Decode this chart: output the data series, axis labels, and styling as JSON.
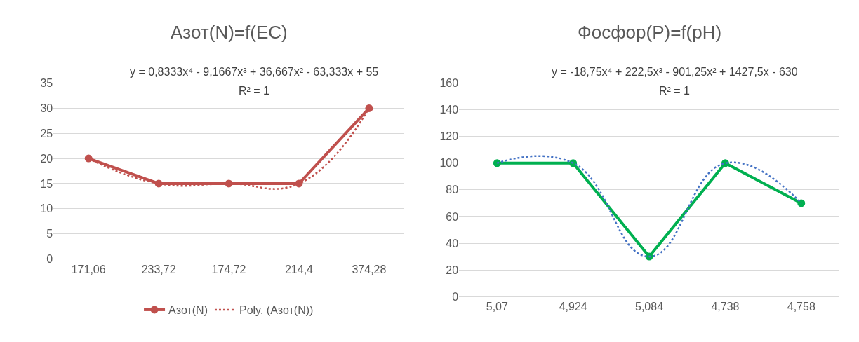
{
  "chart_data": [
    {
      "type": "line",
      "title": "Азот(N)=f(EC)",
      "categories": [
        "171,06",
        "233,72",
        "174,72",
        "214,4",
        "374,28"
      ],
      "ylim": [
        0,
        35
      ],
      "yticks": [
        0,
        5,
        10,
        15,
        20,
        25,
        30,
        35
      ],
      "grid": "y",
      "legend": "bottom",
      "annotations": [
        "y = 0,8333x⁴ - 9,1667x³ + 36,667x² - 63,333x + 55",
        "R² = 1"
      ],
      "series": [
        {
          "name": "Азот(N)",
          "color": "#c0504d",
          "values": [
            20,
            15,
            15,
            15,
            30
          ],
          "marker": "circle",
          "line_style": "solid"
        },
        {
          "name": "Poly. (Азот(N))",
          "color": "#c0504d",
          "type": "line",
          "marker": "none",
          "line_style": "dotted",
          "values": [
            20,
            15,
            15,
            15,
            30
          ]
        }
      ]
    },
    {
      "type": "line",
      "title": "Фосфор(P)=f(pH)",
      "categories": [
        "5,07",
        "4,924",
        "5,084",
        "4,738",
        "4,758"
      ],
      "ylim": [
        0,
        160
      ],
      "yticks": [
        0,
        20,
        40,
        60,
        80,
        100,
        120,
        140,
        160
      ],
      "grid": "y",
      "legend": false,
      "annotations": [
        "y = -18,75x⁴ + 222,5x³ - 901,25x² + 1427,5x - 630",
        "R² = 1"
      ],
      "series": [
        {
          "color": "#00b050",
          "values": [
            100,
            100,
            30,
            100,
            70
          ],
          "marker": "circle",
          "line_style": "solid"
        },
        {
          "color": "#4472c4",
          "type": "line",
          "marker": "none",
          "line_style": "dotted",
          "values": [
            100,
            100,
            30,
            100,
            70
          ]
        }
      ]
    }
  ]
}
